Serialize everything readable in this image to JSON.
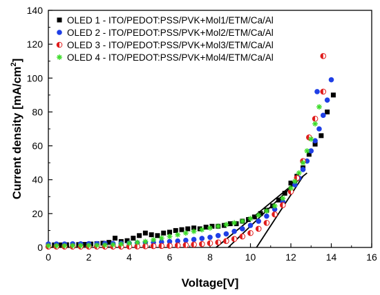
{
  "chart_data": {
    "type": "scatter",
    "xlabel": "Voltage[V]",
    "ylabel_main": "Current density [mA/cm",
    "ylabel_sup": "2",
    "ylabel_tail": "]",
    "xlim": [
      0,
      16
    ],
    "ylim": [
      0,
      140
    ],
    "xticks": [
      0,
      2,
      4,
      6,
      8,
      10,
      12,
      14,
      16
    ],
    "yticks": [
      0,
      20,
      40,
      60,
      80,
      100,
      120,
      140
    ],
    "grid": false,
    "legend_position": "top-left",
    "series": [
      {
        "name": "OLED 1 - ITO/PEDOT:PSS/PVK+Mol1/ETM/Ca/Al",
        "marker": "square",
        "color": "#000000",
        "x": [
          0,
          0.3,
          0.6,
          0.9,
          1.2,
          1.5,
          1.8,
          2.1,
          2.4,
          2.7,
          3.0,
          3.3,
          3.6,
          3.9,
          4.2,
          4.5,
          4.8,
          5.1,
          5.4,
          5.7,
          6.0,
          6.3,
          6.6,
          6.9,
          7.2,
          7.5,
          7.8,
          8.1,
          8.4,
          8.7,
          9.0,
          9.3,
          9.6,
          9.9,
          10.2,
          10.5,
          10.8,
          11.1,
          11.4,
          11.7,
          12.0,
          12.3,
          12.6,
          12.9,
          13.2,
          13.5,
          13.8,
          14.1
        ],
        "y": [
          1.5,
          1.5,
          1.5,
          1.6,
          1.6,
          1.7,
          1.8,
          2.0,
          2.2,
          2.5,
          3.0,
          5.5,
          3.5,
          4.0,
          5.5,
          7.0,
          8.5,
          7.5,
          7.0,
          8.5,
          9.0,
          10.0,
          10.5,
          11.0,
          11.5,
          11.0,
          12.0,
          12.5,
          12.5,
          13.0,
          14.0,
          14.0,
          15.5,
          16.5,
          18.0,
          20.0,
          22.0,
          24.5,
          28.0,
          32.0,
          38.0,
          42.0,
          47.0,
          55.0,
          61.0,
          66.0,
          80.0,
          90.0
        ]
      },
      {
        "name": "OLED 2 - ITO/PEDOT:PSS/PVK+Mol2/ETM/Ca/Al",
        "marker": "circle",
        "color": "#1f3fe6",
        "x": [
          0,
          0.4,
          0.8,
          1.2,
          1.6,
          2.0,
          2.4,
          2.8,
          3.2,
          3.6,
          4.0,
          4.4,
          4.8,
          5.2,
          5.6,
          6.0,
          6.4,
          6.8,
          7.2,
          7.6,
          8.0,
          8.4,
          8.8,
          9.2,
          9.6,
          10.0,
          10.4,
          10.8,
          11.2,
          11.6,
          12.0,
          12.2,
          12.4,
          12.6,
          12.8,
          13.0,
          13.2,
          13.4,
          13.6,
          13.8,
          14.0
        ],
        "y": [
          2.0,
          2.0,
          2.0,
          2.1,
          2.1,
          2.2,
          2.2,
          2.3,
          2.3,
          2.4,
          2.5,
          2.6,
          2.8,
          3.0,
          3.2,
          3.5,
          3.8,
          4.2,
          4.7,
          5.3,
          6.0,
          7.0,
          8.0,
          9.5,
          11.0,
          13.0,
          15.5,
          18.5,
          22.5,
          27.0,
          33.0,
          37.0,
          41.0,
          46.0,
          51.0,
          57.0,
          63.0,
          70.0,
          78.0,
          87.0,
          99.0
        ]
      },
      {
        "name": "OLED 3 - ITO/PEDOT:PSS/PVK+Mol3/ETM/Ca/Al",
        "marker": "half-circle",
        "color": "#e01c1c",
        "x": [
          0,
          0.4,
          0.8,
          1.2,
          1.6,
          2.0,
          2.4,
          2.8,
          3.2,
          3.6,
          4.0,
          4.4,
          4.8,
          5.2,
          5.6,
          6.0,
          6.4,
          6.8,
          7.2,
          7.6,
          8.0,
          8.4,
          8.8,
          9.2,
          9.6,
          10.0,
          10.4,
          10.8,
          11.2,
          11.6,
          12.0,
          12.3,
          12.6,
          12.9,
          13.2,
          13.6
        ],
        "y": [
          0.5,
          0.5,
          0.5,
          0.5,
          0.5,
          0.5,
          0.5,
          0.5,
          0.5,
          0.5,
          0.6,
          0.6,
          0.7,
          0.8,
          0.9,
          1.0,
          1.2,
          1.4,
          1.7,
          2.0,
          2.5,
          3.0,
          3.8,
          5.0,
          6.5,
          8.5,
          11.0,
          14.5,
          19.5,
          25.0,
          33.0,
          41.0,
          51.0,
          65.0,
          76.0,
          92.0
        ]
      },
      {
        "name": "OLED 4 - ITO/PEDOT:PSS/PVK+Mol4/ETM/Ca/Al",
        "marker": "asterisk",
        "color": "#3ddc2a",
        "x": [
          0,
          0.4,
          0.8,
          1.2,
          1.6,
          2.0,
          2.4,
          2.8,
          3.2,
          3.6,
          4.0,
          4.4,
          4.8,
          5.2,
          5.6,
          6.0,
          6.4,
          6.8,
          7.2,
          7.6,
          8.0,
          8.4,
          8.8,
          9.2,
          9.6,
          10.0,
          10.4,
          10.8,
          11.2,
          11.6,
          12.0,
          12.2,
          12.4,
          12.6,
          12.8,
          13.0,
          13.2,
          13.4
        ],
        "y": [
          1.0,
          1.0,
          1.0,
          1.1,
          1.1,
          1.2,
          1.3,
          1.4,
          1.6,
          2.0,
          2.5,
          3.0,
          3.5,
          4.5,
          5.5,
          6.5,
          7.5,
          8.5,
          9.5,
          10.5,
          11.5,
          12.5,
          13.5,
          14.5,
          15.5,
          17.0,
          19.0,
          21.5,
          24.5,
          29.0,
          35.0,
          39.0,
          44.0,
          50.0,
          57.0,
          64.0,
          73.0,
          83.0
        ]
      }
    ],
    "outliers": [
      {
        "series": 2,
        "x": 13.6,
        "y": 113
      },
      {
        "series": 1,
        "x": 13.3,
        "y": 92
      }
    ],
    "fit_lines": [
      {
        "x": [
          8.3,
          12.8
        ],
        "y": [
          0,
          44
        ]
      },
      {
        "x": [
          8.9,
          12.4
        ],
        "y": [
          0,
          40
        ]
      },
      {
        "x": [
          10.3,
          12.6
        ],
        "y": [
          0,
          42
        ]
      }
    ]
  }
}
